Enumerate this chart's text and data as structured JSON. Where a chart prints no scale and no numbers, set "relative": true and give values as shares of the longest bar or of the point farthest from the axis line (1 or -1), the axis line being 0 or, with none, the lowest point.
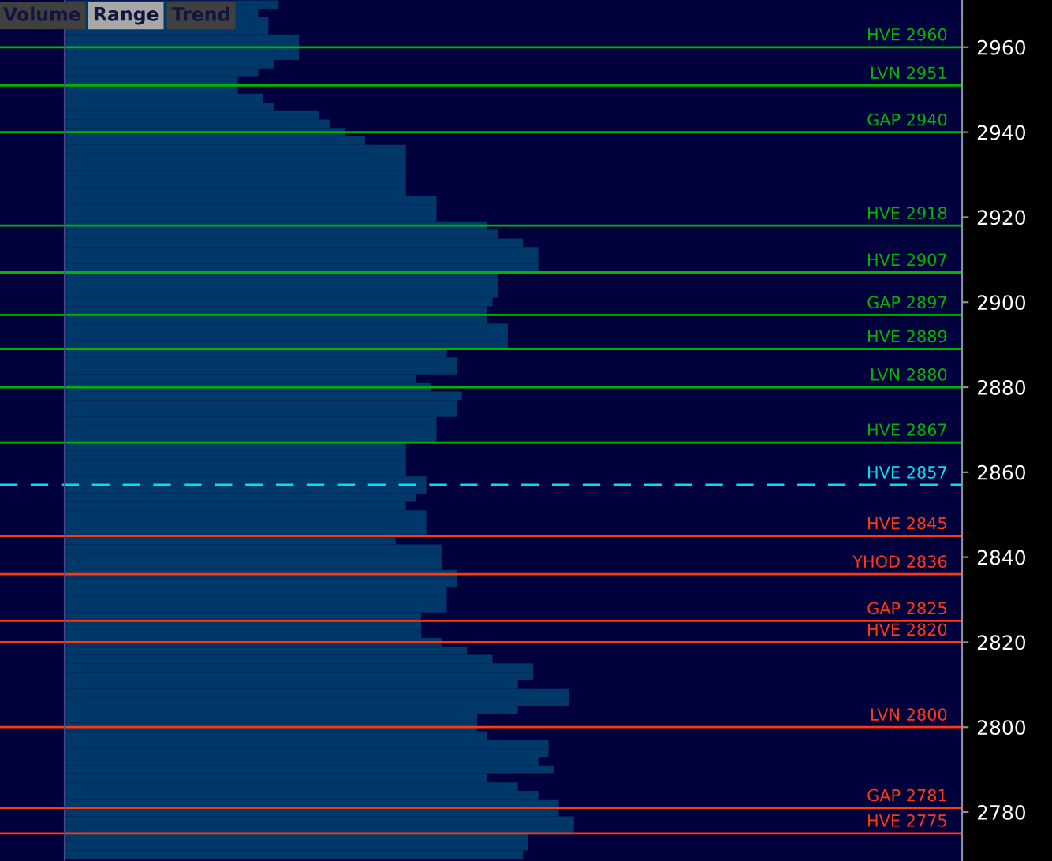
{
  "chart_data": {
    "type": "bar",
    "orientation": "horizontal",
    "relative": true,
    "color": "#00386a",
    "x": [
      2970,
      2968,
      2966,
      2964,
      2962,
      2960,
      2958,
      2956,
      2954,
      2952,
      2950,
      2948,
      2946,
      2944,
      2942,
      2940,
      2938,
      2936,
      2934,
      2932,
      2930,
      2928,
      2926,
      2924,
      2922,
      2920,
      2918,
      2916,
      2914,
      2912,
      2910,
      2908,
      2906,
      2904,
      2902,
      2900,
      2898,
      2896,
      2894,
      2892,
      2890,
      2888,
      2886,
      2884,
      2882,
      2880,
      2878,
      2876,
      2874,
      2872,
      2870,
      2868,
      2866,
      2864,
      2862,
      2860,
      2858,
      2856,
      2854,
      2852,
      2850,
      2848,
      2846,
      2844,
      2842,
      2840,
      2838,
      2836,
      2834,
      2832,
      2830,
      2828,
      2826,
      2824,
      2822,
      2820,
      2818,
      2816,
      2814,
      2812,
      2810,
      2808,
      2806,
      2804,
      2802,
      2800,
      2798,
      2796,
      2794,
      2792,
      2790,
      2788,
      2786,
      2784,
      2782,
      2780,
      2778,
      2776,
      2774,
      2772,
      2770
    ],
    "values": [
      0.42,
      0.38,
      0.4,
      0.4,
      0.46,
      0.46,
      0.46,
      0.41,
      0.38,
      0.34,
      0.34,
      0.39,
      0.41,
      0.5,
      0.52,
      0.55,
      0.59,
      0.67,
      0.67,
      0.67,
      0.67,
      0.67,
      0.67,
      0.73,
      0.73,
      0.73,
      0.83,
      0.85,
      0.9,
      0.93,
      0.93,
      0.93,
      0.85,
      0.85,
      0.85,
      0.84,
      0.83,
      0.83,
      0.87,
      0.87,
      0.87,
      0.75,
      0.77,
      0.77,
      0.69,
      0.72,
      0.78,
      0.77,
      0.77,
      0.73,
      0.73,
      0.73,
      0.67,
      0.67,
      0.67,
      0.67,
      0.71,
      0.71,
      0.69,
      0.67,
      0.71,
      0.71,
      0.71,
      0.65,
      0.74,
      0.74,
      0.74,
      0.77,
      0.77,
      0.75,
      0.75,
      0.75,
      0.7,
      0.7,
      0.7,
      0.74,
      0.79,
      0.84,
      0.92,
      0.92,
      0.89,
      0.99,
      0.99,
      0.89,
      0.81,
      0.81,
      0.83,
      0.95,
      0.95,
      0.93,
      0.96,
      0.83,
      0.89,
      0.93,
      0.97,
      0.97,
      1,
      1,
      0.91,
      0.91,
      0.9
    ],
    "ylim": [
      2768.5,
      2971.1
    ],
    "yticks": [
      2780,
      2800,
      2820,
      2840,
      2860,
      2880,
      2900,
      2920,
      2940,
      2960
    ],
    "ref_lines": [
      {
        "axis": "y",
        "value": 2960,
        "label": "HVE 2960",
        "color": "#00b400",
        "line_style": "solid"
      },
      {
        "axis": "y",
        "value": 2951,
        "label": "LVN 2951",
        "color": "#00b400",
        "line_style": "solid"
      },
      {
        "axis": "y",
        "value": 2940,
        "label": "GAP 2940",
        "color": "#00b400",
        "line_style": "solid"
      },
      {
        "axis": "y",
        "value": 2918,
        "label": "HVE 2918",
        "color": "#00b400",
        "line_style": "solid"
      },
      {
        "axis": "y",
        "value": 2907,
        "label": "HVE 2907",
        "color": "#00b400",
        "line_style": "solid"
      },
      {
        "axis": "y",
        "value": 2897,
        "label": "GAP 2897",
        "color": "#00b400",
        "line_style": "solid"
      },
      {
        "axis": "y",
        "value": 2889,
        "label": "HVE 2889",
        "color": "#00b400",
        "line_style": "solid"
      },
      {
        "axis": "y",
        "value": 2880,
        "label": "LVN 2880",
        "color": "#00b400",
        "line_style": "solid"
      },
      {
        "axis": "y",
        "value": 2867,
        "label": "HVE 2867",
        "color": "#00b400",
        "line_style": "solid"
      },
      {
        "axis": "y",
        "value": 2857,
        "label": "HVE 2857",
        "color": "#00e0f0",
        "line_style": "dashed"
      },
      {
        "axis": "y",
        "value": 2845,
        "label": "HVE 2845",
        "color": "#ff3810",
        "line_style": "solid"
      },
      {
        "axis": "y",
        "value": 2836,
        "label": "YHOD 2836",
        "color": "#ff3810",
        "line_style": "solid"
      },
      {
        "axis": "y",
        "value": 2825,
        "label": "GAP 2825",
        "color": "#ff3810",
        "line_style": "solid"
      },
      {
        "axis": "y",
        "value": 2820,
        "label": "HVE 2820",
        "color": "#ff3810",
        "line_style": "solid"
      },
      {
        "axis": "y",
        "value": 2800,
        "label": "LVN 2800",
        "color": "#ff3810",
        "line_style": "solid"
      },
      {
        "axis": "y",
        "value": 2781,
        "label": "GAP 2781",
        "color": "#ff3810",
        "line_style": "solid"
      },
      {
        "axis": "y",
        "value": 2775,
        "label": "HVE 2775",
        "color": "#ff3810",
        "line_style": "solid"
      }
    ],
    "annotations": [
      "Volume",
      "Range",
      "Trend"
    ],
    "grid": false
  }
}
